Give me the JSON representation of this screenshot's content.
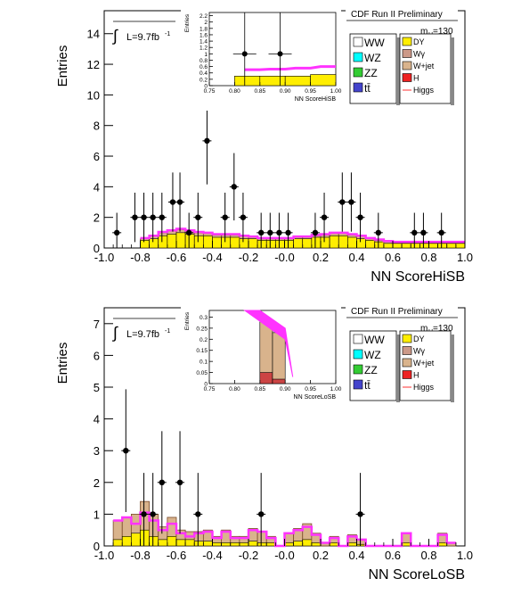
{
  "chart_data": [
    {
      "type": "bar",
      "subtype": "stacked-histogram",
      "title": "CDF Run II Preliminary",
      "xlabel": "NN ScoreHiSB",
      "ylabel": "Entries",
      "xlim": [
        -1.0,
        1.0
      ],
      "ylim": [
        0,
        15.5
      ],
      "xticks": [
        "-1.0",
        "-0.8",
        "-0.6",
        "-0.4",
        "-0.2",
        "-0.0",
        "0.2",
        "0.4",
        "0.6",
        "0.8",
        "1.0"
      ],
      "yticks": [
        "0",
        "2",
        "4",
        "6",
        "8",
        "10",
        "12",
        "14"
      ],
      "lumi_label": "L=9.7fb",
      "lumi_sup": "-1",
      "mass_label": "m",
      "mass_sub": "H",
      "mass_value": "=130",
      "legend_left": [
        "WW",
        "WZ",
        "ZZ",
        "tt̄"
      ],
      "legend_right": [
        "DY",
        "Wγ",
        "W+jet",
        "H",
        "Higgs"
      ],
      "bins_x": [
        -0.8,
        -0.75,
        -0.7,
        -0.65,
        -0.6,
        -0.55,
        -0.5,
        -0.45,
        -0.4,
        -0.35,
        -0.3,
        -0.25,
        -0.2,
        -0.15,
        -0.1,
        -0.05,
        0.0,
        0.05,
        0.1,
        0.15,
        0.2,
        0.25,
        0.3,
        0.35,
        0.4,
        0.45,
        0.5,
        0.55,
        0.6,
        0.65,
        0.7,
        0.75,
        0.8,
        0.85,
        0.9,
        0.95
      ],
      "bin_width": 0.05,
      "series": [
        {
          "name": "DY",
          "values": [
            0.5,
            0.6,
            0.8,
            0.9,
            1.0,
            0.9,
            0.8,
            0.8,
            0.7,
            0.7,
            0.7,
            0.6,
            0.6,
            0.5,
            0.5,
            0.5,
            0.5,
            0.6,
            0.6,
            0.7,
            0.7,
            0.8,
            0.8,
            0.7,
            0.6,
            0.5,
            0.4,
            0.3,
            0.3,
            0.3,
            0.3,
            0.3,
            0.3,
            0.3,
            0.3,
            0.3
          ]
        },
        {
          "name": "W+jet",
          "values": [
            0.1,
            0.15,
            0.2,
            0.2,
            0.2,
            0.2,
            0.2,
            0.15,
            0.15,
            0.15,
            0.15,
            0.15,
            0.1,
            0.1,
            0.1,
            0.1,
            0.1,
            0.1,
            0.1,
            0.1,
            0.15,
            0.15,
            0.15,
            0.15,
            0.15,
            0.1,
            0.1,
            0.1,
            0.05,
            0.05,
            0.05,
            0.05,
            0.05,
            0.05,
            0.05,
            0.05
          ]
        },
        {
          "name": "Higgs",
          "values": [
            0.65,
            0.8,
            1.05,
            1.15,
            1.25,
            1.15,
            1.05,
            1.0,
            0.9,
            0.9,
            0.9,
            0.8,
            0.75,
            0.65,
            0.65,
            0.65,
            0.65,
            0.75,
            0.75,
            0.85,
            0.9,
            1.0,
            1.0,
            0.9,
            0.8,
            0.65,
            0.55,
            0.45,
            0.4,
            0.4,
            0.4,
            0.4,
            0.4,
            0.4,
            0.4,
            0.4
          ]
        }
      ],
      "data_points": {
        "x": [
          -0.93,
          -0.83,
          -0.78,
          -0.73,
          -0.68,
          -0.62,
          -0.58,
          -0.53,
          -0.48,
          -0.43,
          -0.33,
          -0.28,
          -0.23,
          -0.13,
          -0.08,
          -0.03,
          0.02,
          0.17,
          0.22,
          0.32,
          0.37,
          0.42,
          0.52,
          0.72,
          0.77,
          0.87
        ],
        "y": [
          1,
          2,
          2,
          2,
          2,
          3,
          3,
          1,
          2,
          7,
          2,
          4,
          2,
          1,
          1,
          1,
          1,
          1,
          2,
          3,
          3,
          2,
          1,
          1,
          1,
          1
        ]
      },
      "inset": {
        "xlabel": "NN ScoreHiSB",
        "ylabel": "Entries",
        "xlim": [
          0.75,
          1.0
        ],
        "ylim": [
          0,
          2.3
        ],
        "xticks": [
          "0.75",
          "0.80",
          "0.85",
          "0.90",
          "0.95",
          "1.00"
        ],
        "yticks": [
          "0",
          "0.2",
          "0.4",
          "0.6",
          "0.8",
          "1",
          "1.2",
          "1.4",
          "1.6",
          "1.8",
          "2",
          "2.2"
        ],
        "bins_x": [
          0.8,
          0.85,
          0.9,
          0.95
        ],
        "bin_width": 0.05,
        "dy_values": [
          0.3,
          0.3,
          0.3,
          0.35
        ],
        "higgs_values": [
          0.5,
          0.52,
          0.55,
          0.6
        ],
        "data_points": {
          "x": [
            0.82,
            0.89
          ],
          "y": [
            1,
            1
          ]
        }
      }
    },
    {
      "type": "bar",
      "subtype": "stacked-histogram",
      "title": "CDF Run II Preliminary",
      "xlabel": "NN ScoreLoSB",
      "ylabel": "Entries",
      "xlim": [
        -1.0,
        1.0
      ],
      "ylim": [
        0,
        7.5
      ],
      "xticks": [
        "-1.0",
        "-0.8",
        "-0.6",
        "-0.4",
        "-0.2",
        "-0.0",
        "0.2",
        "0.4",
        "0.6",
        "0.8",
        "1.0"
      ],
      "yticks": [
        "0",
        "1",
        "2",
        "3",
        "4",
        "5",
        "6",
        "7"
      ],
      "lumi_label": "L=9.7fb",
      "lumi_sup": "-1",
      "mass_label": "m",
      "mass_sub": "H",
      "mass_value": "=130",
      "legend_left": [
        "WW",
        "WZ",
        "ZZ",
        "tt̄"
      ],
      "legend_right": [
        "DY",
        "Wγ",
        "W+jet",
        "H",
        "Higgs"
      ],
      "bins_x": [
        -0.95,
        -0.9,
        -0.85,
        -0.8,
        -0.75,
        -0.7,
        -0.65,
        -0.6,
        -0.55,
        -0.5,
        -0.45,
        -0.4,
        -0.35,
        -0.3,
        -0.25,
        -0.2,
        -0.15,
        -0.1,
        -0.05,
        0.0,
        0.05,
        0.1,
        0.15,
        0.2,
        0.25,
        0.3,
        0.35,
        0.4,
        0.45,
        0.5,
        0.55,
        0.6,
        0.65,
        0.7,
        0.75,
        0.8,
        0.85,
        0.9
      ],
      "bin_width": 0.05,
      "series": [
        {
          "name": "DY",
          "values": [
            0.2,
            0.3,
            0.4,
            0.5,
            0.3,
            0.2,
            0.3,
            0.2,
            0.2,
            0.15,
            0.15,
            0.1,
            0.1,
            0.1,
            0.1,
            0.15,
            0.1,
            0.1,
            0.0,
            0.1,
            0.15,
            0.2,
            0.1,
            0.0,
            0.1,
            0.0,
            0.1,
            0.05,
            0.0,
            0.0,
            0.0,
            0.0,
            0.1,
            0.0,
            0.0,
            0.0,
            0.1,
            0.0
          ]
        },
        {
          "name": "W+jet",
          "values": [
            0.6,
            0.6,
            0.6,
            0.9,
            0.7,
            0.4,
            0.6,
            0.3,
            0.25,
            0.3,
            0.35,
            0.2,
            0.4,
            0.2,
            0.2,
            0.4,
            0.35,
            0.2,
            0.0,
            0.3,
            0.4,
            0.5,
            0.3,
            0.1,
            0.2,
            0.0,
            0.25,
            0.15,
            0.0,
            0.0,
            0.0,
            0.0,
            0.3,
            0.0,
            0.0,
            0.0,
            0.3,
            0.1
          ]
        },
        {
          "name": "Higgs",
          "values": [
            0.8,
            0.9,
            0.7,
            1.05,
            0.8,
            0.5,
            0.7,
            0.4,
            0.3,
            0.4,
            0.45,
            0.25,
            0.45,
            0.25,
            0.25,
            0.5,
            0.45,
            0.25,
            0.0,
            0.4,
            0.5,
            0.6,
            0.35,
            0.1,
            0.25,
            0.0,
            0.3,
            0.2,
            0.0,
            0.0,
            0.0,
            0.0,
            0.4,
            0.0,
            0.0,
            0.0,
            0.35,
            0.1
          ]
        }
      ],
      "data_points": {
        "x": [
          -0.88,
          -0.78,
          -0.73,
          -0.68,
          -0.58,
          -0.48,
          -0.13,
          0.42
        ],
        "y": [
          3,
          1,
          1,
          2,
          2,
          1,
          1,
          1
        ]
      },
      "inset": {
        "xlabel": "NN ScoreLoSB",
        "ylabel": "Entries",
        "xlim": [
          0.75,
          1.0
        ],
        "ylim": [
          0,
          0.33
        ],
        "xticks": [
          "0.75",
          "0.80",
          "0.85",
          "0.90",
          "0.95",
          "1.00"
        ],
        "yticks": [
          "0",
          "0.05",
          "0.1",
          "0.15",
          "0.2",
          "0.25",
          "0.3"
        ],
        "bins_x": [
          0.85,
          0.875,
          0.9
        ],
        "bin_width": 0.025,
        "wjet_values": [
          0.28,
          0.23,
          0.0
        ],
        "h_values": [
          0.05,
          0.02,
          0.0
        ],
        "higgs_values": [
          0.33,
          0.25,
          0.03
        ]
      }
    }
  ]
}
